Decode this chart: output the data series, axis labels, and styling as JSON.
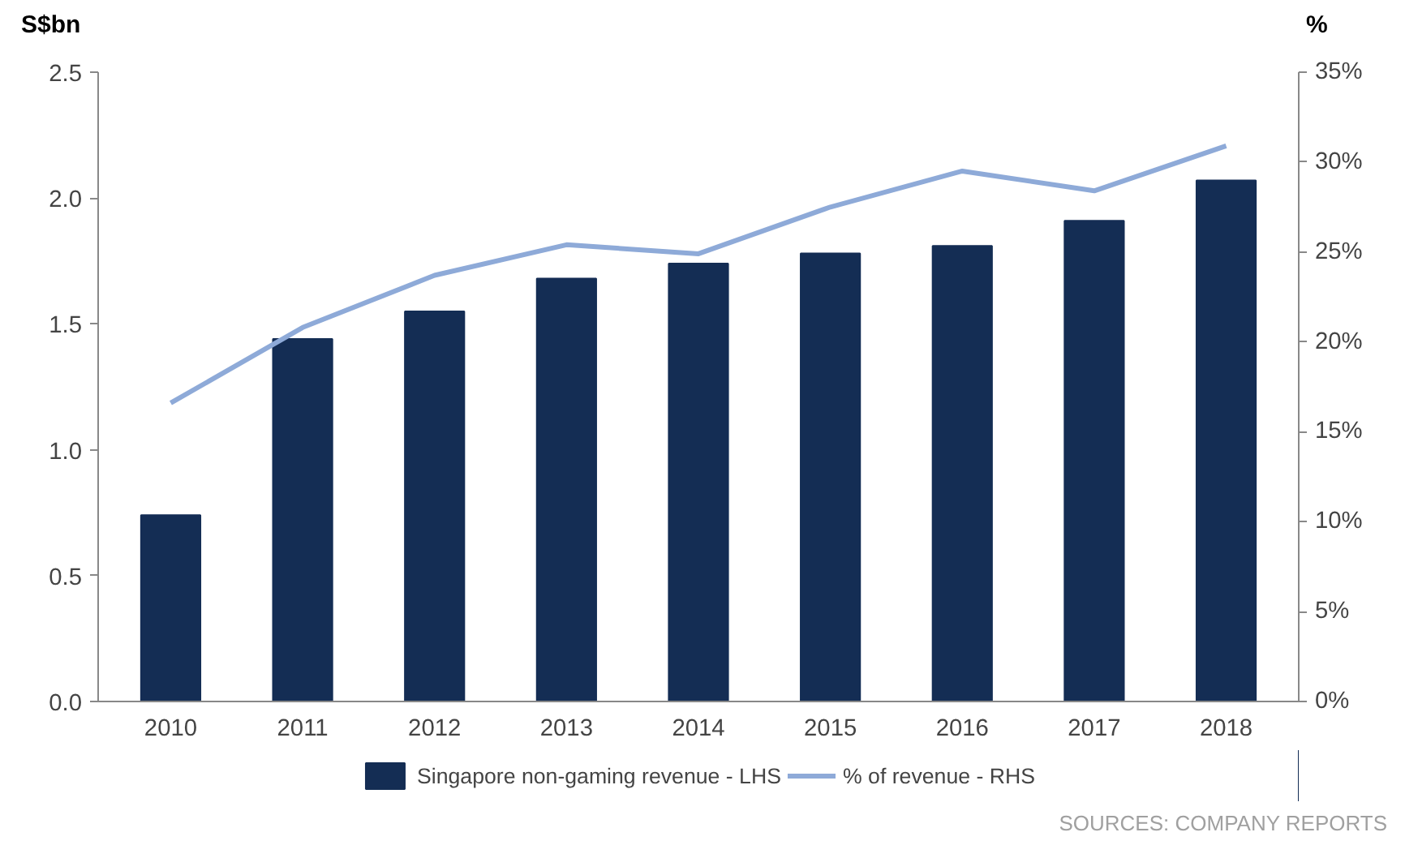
{
  "chart_data": {
    "type": "bar",
    "ylabel": "S$bn",
    "y2label": "%",
    "categories": [
      "2010",
      "2011",
      "2012",
      "2013",
      "2014",
      "2015",
      "2016",
      "2017",
      "2018"
    ],
    "series": [
      {
        "name": "Singapore non-gaming revenue - LHS",
        "color": "#142d54",
        "values": [
          0.74,
          1.44,
          1.55,
          1.68,
          1.74,
          1.78,
          1.81,
          1.91,
          2.07
        ]
      },
      {
        "name": "% of revenue - RHS",
        "type": "line",
        "axis": "y2",
        "color": "#8eaad8",
        "values": [
          16.6,
          20.8,
          23.7,
          25.4,
          24.9,
          27.5,
          29.5,
          28.4,
          30.9
        ]
      }
    ],
    "ylim": [
      0,
      2.5
    ],
    "yticks": [
      {
        "value": 0,
        "label": "0.0"
      },
      0.5,
      {
        "value": 1,
        "label": "1.0"
      },
      1.5,
      {
        "value": 2,
        "label": "2.0"
      },
      2.5
    ],
    "y2lim": [
      0,
      35
    ],
    "y2ticks": [
      {
        "value": 0,
        "label": "0%"
      },
      {
        "value": 5,
        "label": "5%"
      },
      {
        "value": 10,
        "label": "10%"
      },
      {
        "value": 15,
        "label": "15%"
      },
      {
        "value": 20,
        "label": "20%"
      },
      {
        "value": 25,
        "label": "25%"
      },
      {
        "value": 30,
        "label": "30%"
      },
      {
        "value": 35,
        "label": "35%"
      }
    ],
    "grid": false,
    "legend": "bottom",
    "marker": "none",
    "line_style": "solid",
    "annotations": [
      "SOURCES: COMPANY REPORTS"
    ]
  }
}
